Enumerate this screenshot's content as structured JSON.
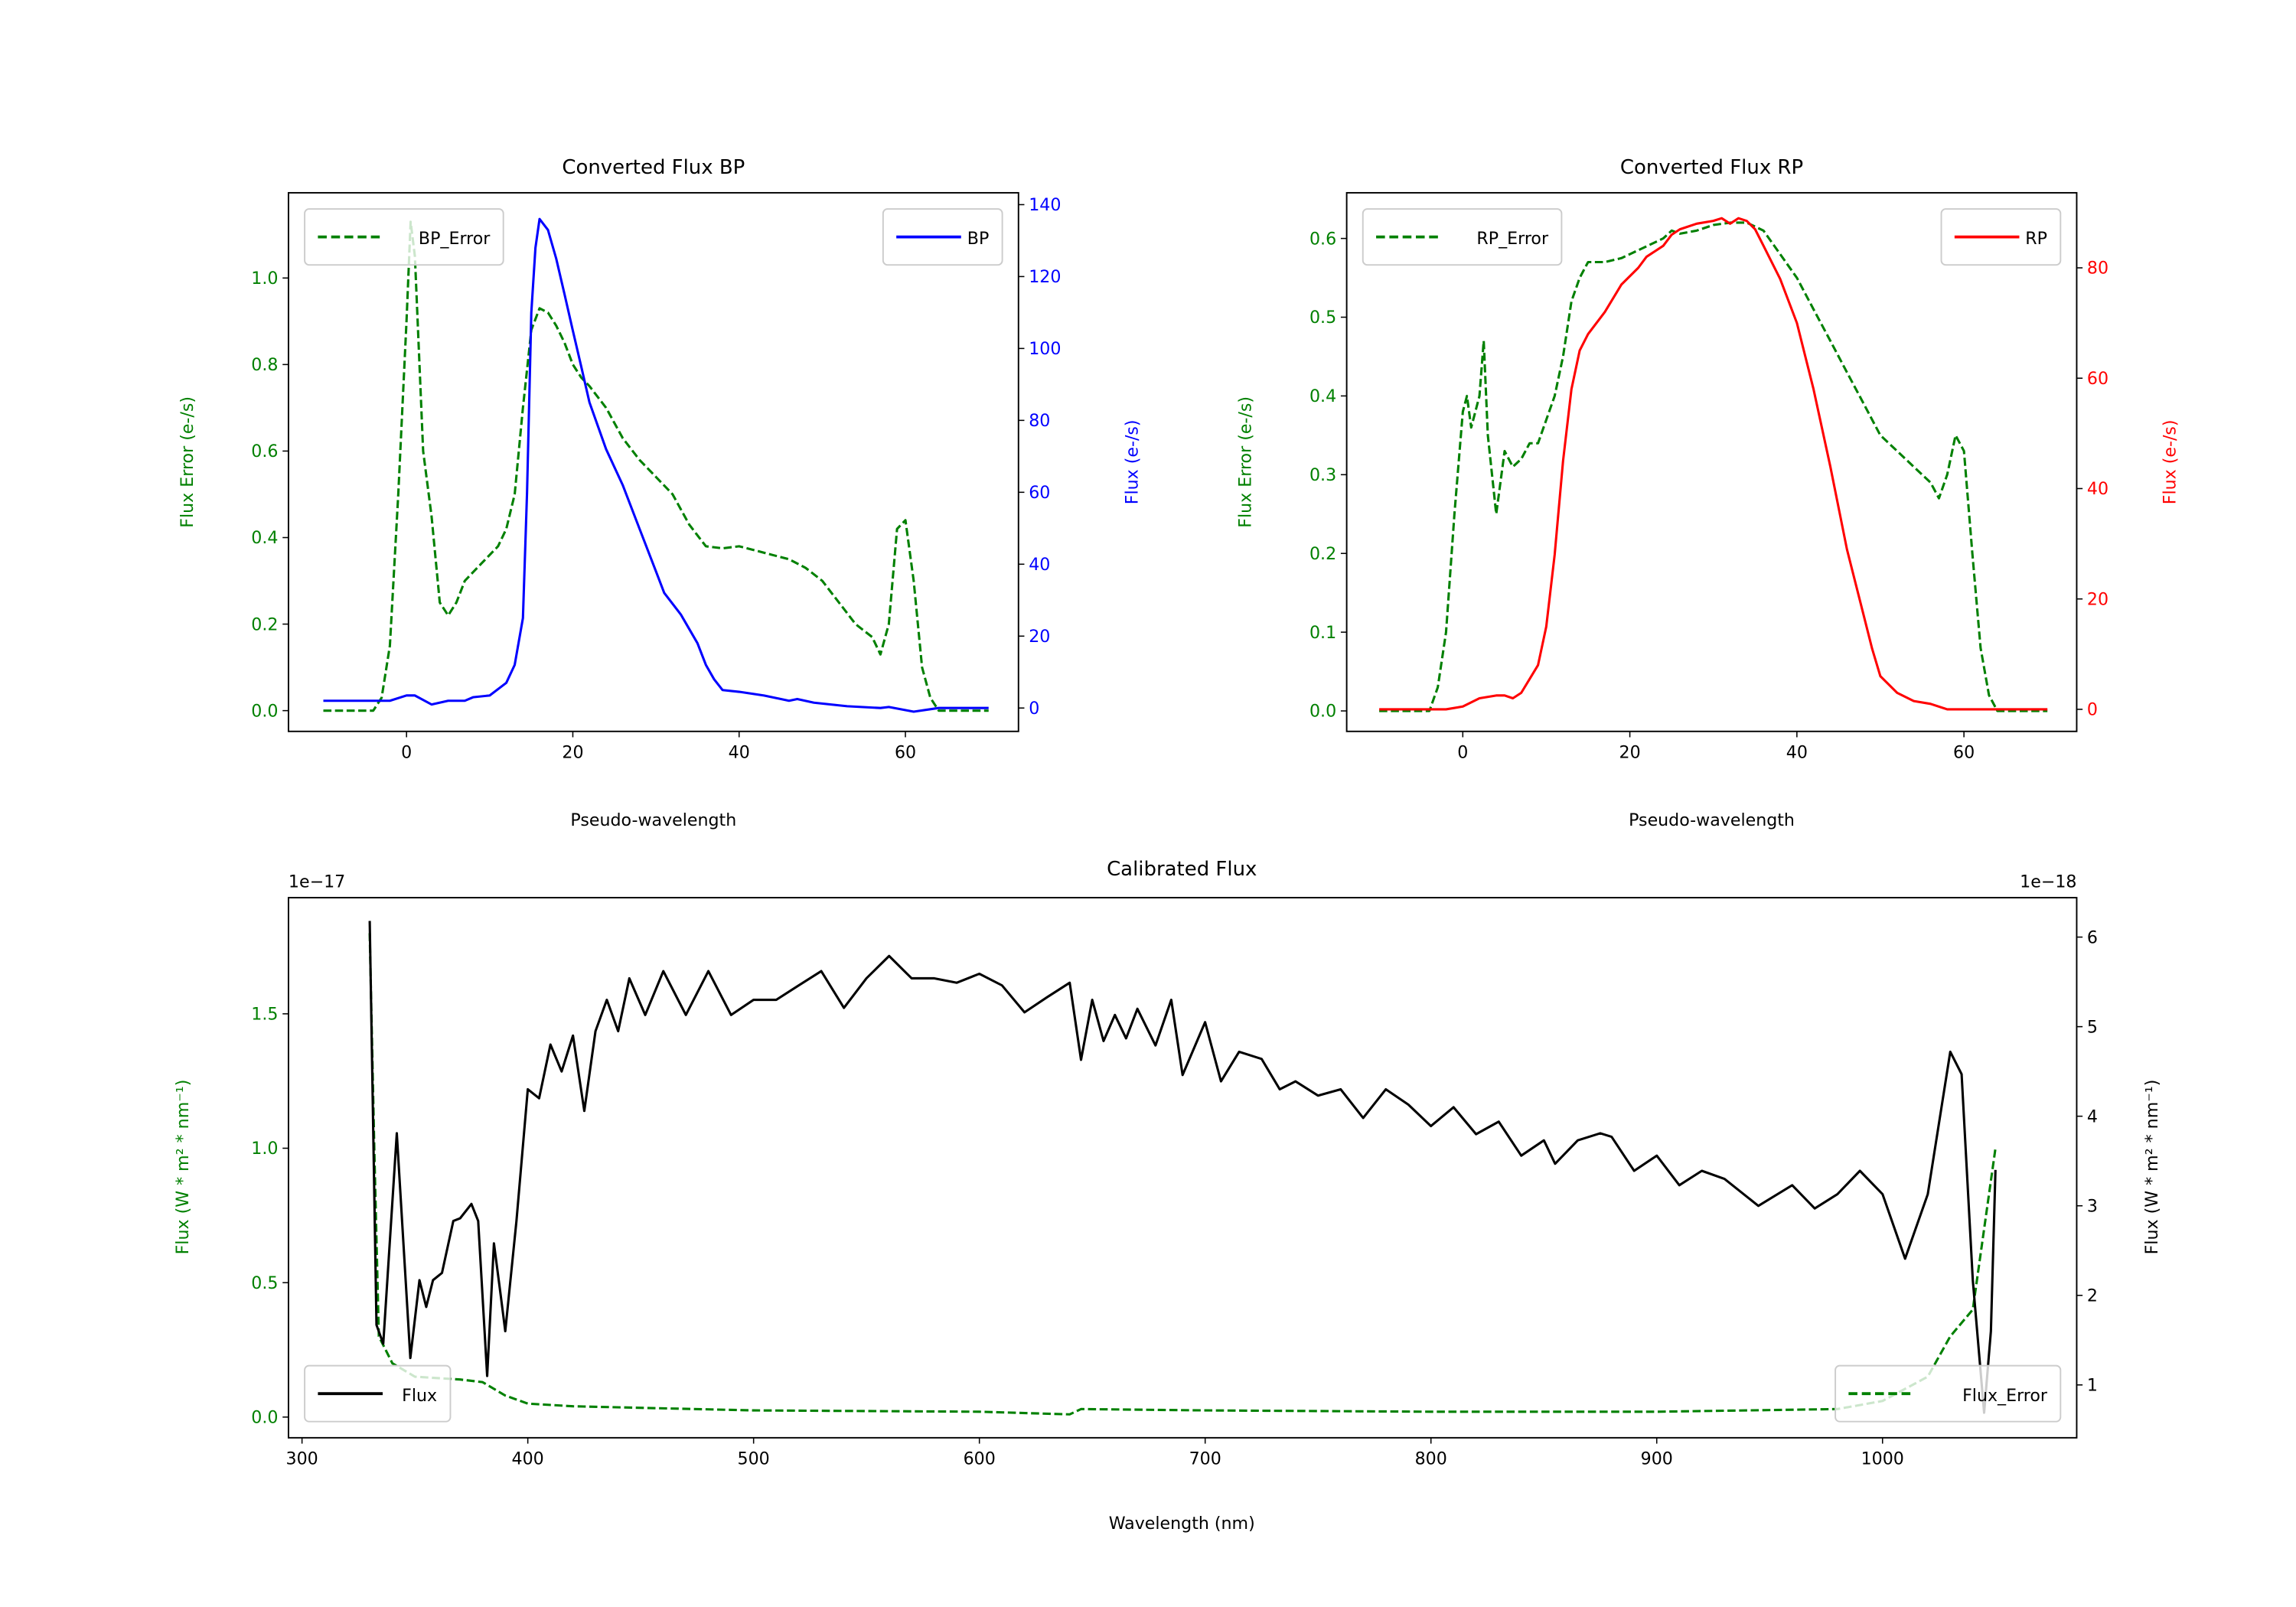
{
  "colors": {
    "error": "#008000",
    "bp": "#0000ff",
    "rp": "#ff0000",
    "flux": "#000000"
  },
  "chart_data": [
    {
      "type": "line",
      "title": "Converted Flux BP",
      "xlabel": "Pseudo-wavelength",
      "ylabel_left": "Flux Error (e-/s)",
      "ylabel_right": "Flux (e-/s)",
      "xlim": [
        -14.2,
        73.6
      ],
      "ylim_left": [
        -0.048,
        1.197
      ],
      "ylim_right": [
        -6.5,
        143.3
      ],
      "xticks": [
        0,
        20,
        40,
        60
      ],
      "xtick_labels": [
        "0",
        "20",
        "40",
        "60"
      ],
      "yticks_left": [
        0,
        0.2,
        0.4,
        0.6,
        0.8,
        1.0
      ],
      "ytick_labels_left": [
        "0.0",
        "0.2",
        "0.4",
        "0.6",
        "0.8",
        "1.0"
      ],
      "yticks_right": [
        0,
        20,
        40,
        60,
        80,
        100,
        120,
        140
      ],
      "ytick_labels_right": [
        "0",
        "20",
        "40",
        "60",
        "80",
        "100",
        "120",
        "140"
      ],
      "legend_left": {
        "label": "BP_Error",
        "position": "upper-left"
      },
      "legend_right": {
        "label": "BP",
        "position": "upper-right"
      },
      "series": [
        {
          "name": "BP_Error",
          "axis": "left",
          "style": "dashed",
          "color": "#008000",
          "x": [
            -10,
            -4,
            -3,
            -2,
            -1,
            0,
            0.5,
            1,
            2,
            3,
            4,
            5,
            6,
            7,
            9,
            11,
            12,
            13,
            14,
            15,
            16,
            17,
            18,
            19,
            20,
            21,
            22,
            24,
            26,
            28,
            30,
            32,
            34,
            36,
            38,
            40,
            42,
            44,
            46,
            48,
            50,
            52,
            54,
            56,
            57,
            58,
            59,
            60,
            61,
            62,
            63,
            64,
            70
          ],
          "y": [
            0,
            0,
            0.03,
            0.15,
            0.5,
            0.9,
            1.13,
            1.05,
            0.6,
            0.45,
            0.25,
            0.22,
            0.25,
            0.3,
            0.34,
            0.38,
            0.42,
            0.5,
            0.7,
            0.88,
            0.93,
            0.92,
            0.89,
            0.85,
            0.8,
            0.77,
            0.75,
            0.7,
            0.63,
            0.58,
            0.54,
            0.5,
            0.43,
            0.38,
            0.375,
            0.38,
            0.37,
            0.36,
            0.35,
            0.33,
            0.3,
            0.25,
            0.2,
            0.17,
            0.13,
            0.2,
            0.42,
            0.44,
            0.3,
            0.1,
            0.03,
            0,
            0
          ]
        },
        {
          "name": "BP",
          "axis": "right",
          "style": "solid",
          "color": "#0000ff",
          "x": [
            -10,
            -2,
            0,
            1,
            3,
            5,
            7,
            8,
            10,
            12,
            13,
            14,
            14.5,
            15,
            15.5,
            16,
            17,
            18,
            19,
            20,
            21,
            22,
            24,
            26,
            28,
            30,
            31,
            33,
            35,
            36,
            37,
            38,
            40,
            43,
            46,
            47,
            49,
            53,
            57,
            58,
            61,
            64,
            70
          ],
          "y": [
            2,
            2,
            3.5,
            3.5,
            1,
            2,
            2,
            3,
            3.5,
            7,
            12,
            25,
            60,
            110,
            128,
            136,
            133,
            125,
            115,
            105,
            95,
            85,
            72,
            62,
            50,
            38,
            32,
            26,
            18,
            12,
            8,
            5,
            4.5,
            3.5,
            2,
            2.5,
            1.5,
            0.5,
            0,
            0.3,
            -1,
            0,
            0
          ]
        }
      ]
    },
    {
      "type": "line",
      "title": "Converted Flux RP",
      "xlabel": "Pseudo-wavelength",
      "ylabel_left": "Flux Error (e-/s)",
      "ylabel_right": "Flux (e-/s)",
      "xlim": [
        -13.9,
        73.5
      ],
      "ylim_left": [
        -0.026,
        0.658
      ],
      "ylim_right": [
        -4,
        93.6
      ],
      "xticks": [
        0,
        20,
        40,
        60
      ],
      "xtick_labels": [
        "0",
        "20",
        "40",
        "60"
      ],
      "yticks_left": [
        0,
        0.1,
        0.2,
        0.3,
        0.4,
        0.5,
        0.6
      ],
      "ytick_labels_left": [
        "0.0",
        "0.1",
        "0.2",
        "0.3",
        "0.4",
        "0.5",
        "0.6"
      ],
      "yticks_right": [
        0,
        20,
        40,
        60,
        80
      ],
      "ytick_labels_right": [
        "0",
        "20",
        "40",
        "60",
        "80"
      ],
      "legend_left": {
        "label": "RP_Error",
        "position": "upper-left"
      },
      "legend_right": {
        "label": "RP",
        "position": "upper-right"
      },
      "series": [
        {
          "name": "RP_Error",
          "axis": "left",
          "style": "dashed",
          "color": "#008000",
          "x": [
            -10,
            -4,
            -3,
            -2,
            -1,
            0,
            0.5,
            1,
            2,
            2.5,
            3,
            4,
            5,
            6,
            7,
            8,
            9,
            11,
            12,
            13,
            14,
            15,
            17,
            19,
            20,
            22,
            24,
            25,
            26,
            28,
            30,
            32,
            34,
            36,
            38,
            40,
            42,
            44,
            46,
            48,
            50,
            52,
            54,
            56,
            57,
            58,
            59,
            60,
            61,
            62,
            63,
            64,
            70
          ],
          "y": [
            0,
            0,
            0.03,
            0.1,
            0.25,
            0.38,
            0.4,
            0.36,
            0.4,
            0.47,
            0.35,
            0.25,
            0.33,
            0.31,
            0.32,
            0.34,
            0.34,
            0.4,
            0.45,
            0.52,
            0.55,
            0.57,
            0.57,
            0.575,
            0.58,
            0.59,
            0.6,
            0.61,
            0.606,
            0.61,
            0.617,
            0.62,
            0.62,
            0.61,
            0.58,
            0.55,
            0.51,
            0.47,
            0.43,
            0.39,
            0.35,
            0.33,
            0.31,
            0.29,
            0.27,
            0.3,
            0.35,
            0.33,
            0.2,
            0.08,
            0.02,
            0,
            0
          ]
        },
        {
          "name": "RP",
          "axis": "right",
          "style": "solid",
          "color": "#ff0000",
          "x": [
            -10,
            -2,
            0,
            2,
            4,
            5,
            6,
            7,
            9,
            10,
            11,
            12,
            13,
            14,
            15,
            17,
            19,
            21,
            22,
            24,
            25,
            26,
            28,
            30,
            31,
            32,
            33,
            34,
            35,
            36,
            38,
            40,
            42,
            44,
            46,
            48,
            49,
            50,
            52,
            54,
            56,
            58,
            62,
            70
          ],
          "y": [
            0,
            0,
            0.5,
            2,
            2.5,
            2.5,
            2,
            3,
            8,
            15,
            28,
            45,
            58,
            65,
            68,
            72,
            77,
            80,
            82,
            84,
            86,
            87,
            88,
            88.5,
            89,
            88,
            89,
            88.5,
            87,
            84,
            78,
            70,
            58,
            44,
            29,
            17,
            11,
            6,
            3,
            1.5,
            1,
            0,
            0,
            0
          ]
        }
      ]
    },
    {
      "type": "line",
      "title": "Calibrated Flux",
      "xlabel": "Wavelength (nm)",
      "ylabel_left": "Flux (W * m² * nm⁻¹)",
      "ylabel_right": "Flux (W * m² * nm⁻¹)",
      "offset_left": "1e−17",
      "offset_right": "1e−18",
      "xlim": [
        294,
        1086
      ],
      "ylim_left": [
        -0.077,
        1.932
      ],
      "ylim_right": [
        0.41,
        6.44
      ],
      "xticks": [
        300,
        400,
        500,
        600,
        700,
        800,
        900,
        1000
      ],
      "xtick_labels": [
        "300",
        "400",
        "500",
        "600",
        "700",
        "800",
        "900",
        "1000"
      ],
      "yticks_left": [
        0,
        0.5,
        1.0,
        1.5
      ],
      "ytick_labels_left": [
        "0.0",
        "0.5",
        "1.0",
        "1.5"
      ],
      "yticks_right": [
        1,
        2,
        3,
        4,
        5,
        6
      ],
      "ytick_labels_right": [
        "1",
        "2",
        "3",
        "4",
        "5",
        "6"
      ],
      "legend_left": {
        "label": "Flux",
        "position": "lower-left"
      },
      "legend_right": {
        "label": "Flux_Error",
        "position": "lower-right"
      },
      "series": [
        {
          "name": "Flux_Error",
          "axis": "left",
          "style": "dashed",
          "color": "#008000",
          "x": [
            330,
            332,
            334,
            340,
            350,
            370,
            380,
            390,
            400,
            420,
            500,
            600,
            640,
            645,
            700,
            800,
            900,
            980,
            1000,
            1020,
            1030,
            1040,
            1045,
            1050
          ],
          "y": [
            1.8,
            1.0,
            0.3,
            0.2,
            0.15,
            0.14,
            0.13,
            0.08,
            0.05,
            0.04,
            0.025,
            0.02,
            0.01,
            0.03,
            0.025,
            0.02,
            0.02,
            0.03,
            0.06,
            0.15,
            0.3,
            0.4,
            0.7,
            1.0
          ]
        },
        {
          "name": "Flux",
          "axis": "right",
          "style": "solid",
          "color": "#000000",
          "x": [
            330,
            333,
            336,
            342,
            348,
            352,
            355,
            358,
            362,
            367,
            370,
            375,
            378,
            382,
            385,
            388,
            390,
            395,
            400,
            405,
            410,
            415,
            420,
            425,
            430,
            435,
            440,
            445,
            452,
            460,
            470,
            480,
            490,
            500,
            510,
            520,
            530,
            540,
            550,
            560,
            570,
            580,
            590,
            600,
            610,
            620,
            630,
            640,
            645,
            650,
            655,
            660,
            665,
            670,
            678,
            685,
            690,
            700,
            707,
            715,
            725,
            733,
            740,
            750,
            760,
            770,
            780,
            790,
            800,
            810,
            820,
            830,
            840,
            850,
            855,
            865,
            875,
            880,
            890,
            900,
            910,
            920,
            930,
            945,
            960,
            970,
            980,
            990,
            1000,
            1010,
            1020,
            1030,
            1035,
            1040,
            1045,
            1048,
            1050
          ],
          "y": [
            6.18,
            1.67,
            1.46,
            3.81,
            1.3,
            2.17,
            1.87,
            2.17,
            2.25,
            2.83,
            2.86,
            3.02,
            2.83,
            1.1,
            2.58,
            2.0,
            1.6,
            2.83,
            4.3,
            4.2,
            4.8,
            4.5,
            4.9,
            4.06,
            4.95,
            5.3,
            4.95,
            5.54,
            5.13,
            5.62,
            5.13,
            5.62,
            5.13,
            5.3,
            5.3,
            5.46,
            5.62,
            5.21,
            5.54,
            5.79,
            5.54,
            5.54,
            5.49,
            5.59,
            5.46,
            5.16,
            5.33,
            5.49,
            4.63,
            5.3,
            4.84,
            5.13,
            4.87,
            5.2,
            4.79,
            5.3,
            4.46,
            5.05,
            4.39,
            4.72,
            4.64,
            4.3,
            4.39,
            4.23,
            4.3,
            3.98,
            4.3,
            4.13,
            3.89,
            4.1,
            3.8,
            3.94,
            3.56,
            3.73,
            3.47,
            3.73,
            3.81,
            3.77,
            3.39,
            3.56,
            3.23,
            3.39,
            3.3,
            3.0,
            3.23,
            2.97,
            3.13,
            3.39,
            3.13,
            2.41,
            3.13,
            4.72,
            4.47,
            2.17,
            0.69,
            1.6,
            3.4
          ]
        }
      ]
    }
  ]
}
